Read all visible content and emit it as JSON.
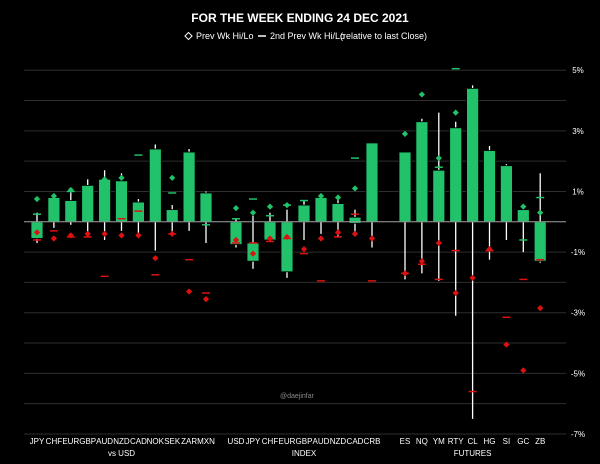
{
  "chart_data": {
    "type": "bar",
    "title": "FOR THE WEEK ENDING 24 DEC 2021",
    "legend": {
      "prev_week": "Prev Wk Hi/Lo",
      "prev_2_week": "2nd Prev Wk Hi/Lo",
      "note": "(relative to last Close)"
    },
    "y_ticks": [
      "5%",
      "3%",
      "1%",
      "-1%",
      "-3%",
      "-5%",
      "-7%"
    ],
    "ylim": [
      -7,
      5.6
    ],
    "grid": true,
    "watermark": "@daejinfar",
    "colors": {
      "up": "#21c26a",
      "down": "#dd1111",
      "wick": "#ffffff",
      "gridline": "#2e2e2e",
      "zero": "#999999"
    },
    "groups": [
      {
        "label": "vs USD",
        "items": [
          {
            "name": "JPY",
            "open": -0.55,
            "close": 0.0,
            "high": 0.3,
            "low": -0.7,
            "pwH": 0.75,
            "pwL": -0.35,
            "p2H": 0.25,
            "p2L": -0.6
          },
          {
            "name": "CHF",
            "open": 0.0,
            "close": 0.8,
            "high": 0.9,
            "low": -0.2,
            "pwH": 0.85,
            "pwL": -0.55,
            "p2H": 0.6,
            "p2L": -0.3
          },
          {
            "name": "EUR",
            "open": 0.0,
            "close": 0.7,
            "high": 1.0,
            "low": -0.1,
            "pwH": 1.05,
            "pwL": -0.45,
            "p2H": 1.0,
            "p2L": -0.5
          },
          {
            "name": "GBP",
            "open": 0.0,
            "close": 1.2,
            "high": 1.4,
            "low": -0.5,
            "pwH": 1.0,
            "pwL": -0.4,
            "p2H": 0.5,
            "p2L": -0.5
          },
          {
            "name": "AUD",
            "open": 0.0,
            "close": 1.4,
            "high": 1.7,
            "low": -0.6,
            "pwH": 1.4,
            "pwL": -0.4,
            "p2H": 0.9,
            "p2L": -1.8
          },
          {
            "name": "NZD",
            "open": 0.0,
            "close": 1.35,
            "high": 1.6,
            "low": -0.3,
            "pwH": 1.45,
            "pwL": -0.45,
            "p2H": 1.2,
            "p2L": 0.1
          },
          {
            "name": "CAD",
            "open": 0.0,
            "close": 0.65,
            "high": 0.75,
            "low": -0.5,
            "pwH": 0.4,
            "pwL": -0.45,
            "p2H": 2.2,
            "p2L": 0.35
          },
          {
            "name": "NOK",
            "open": 0.0,
            "close": 2.4,
            "high": 2.55,
            "low": -0.95,
            "pwH": 1.1,
            "pwL": -1.2,
            "p2H": 1.9,
            "p2L": -1.75
          },
          {
            "name": "SEK",
            "open": 0.0,
            "close": 0.4,
            "high": 0.55,
            "low": -0.4,
            "pwH": 1.45,
            "pwL": -0.4,
            "p2H": 0.95,
            "p2L": -0.4
          },
          {
            "name": "ZAR",
            "open": 0.0,
            "close": 2.3,
            "high": 2.4,
            "low": -0.3,
            "pwH": 0.6,
            "pwL": -2.3,
            "p2H": 1.4,
            "p2L": -1.25
          },
          {
            "name": "MXN",
            "open": 0.0,
            "close": 0.95,
            "high": 1.0,
            "low": -0.7,
            "pwH": 0.5,
            "pwL": -2.55,
            "p2H": -0.1,
            "p2L": -2.35
          }
        ]
      },
      {
        "label": "INDEX",
        "items": [
          {
            "name": "USD",
            "open": -0.75,
            "close": 0.0,
            "high": 0.1,
            "low": -0.85,
            "pwH": 0.45,
            "pwL": -0.6,
            "p2H": 0.1,
            "p2L": -0.7
          },
          {
            "name": "JPY",
            "open": -1.3,
            "close": -0.7,
            "high": 0.2,
            "low": -1.55,
            "pwH": 0.3,
            "pwL": -1.05,
            "p2H": 0.75,
            "p2L": -0.7
          },
          {
            "name": "CHF",
            "open": -0.6,
            "close": 0.0,
            "high": 0.3,
            "low": -0.65,
            "pwH": 0.5,
            "pwL": -0.55,
            "p2H": 0.2,
            "p2L": -0.65
          },
          {
            "name": "EUR",
            "open": -1.65,
            "close": 0.0,
            "high": 0.4,
            "low": -1.85,
            "pwH": 0.55,
            "pwL": -0.5,
            "p2H": 0.55,
            "p2L": -0.55
          },
          {
            "name": "GBP",
            "open": 0.0,
            "close": 0.55,
            "high": 0.7,
            "low": -0.6,
            "pwH": 0.35,
            "pwL": -0.9,
            "p2H": 0.7,
            "p2L": -1.05
          },
          {
            "name": "AUD",
            "open": 0.0,
            "close": 0.8,
            "high": 0.9,
            "low": -0.4,
            "pwH": 0.85,
            "pwL": -0.55,
            "p2H": 0.35,
            "p2L": -1.95
          },
          {
            "name": "NZD",
            "open": 0.0,
            "close": 0.6,
            "high": 0.75,
            "low": -0.5,
            "pwH": 0.8,
            "pwL": -0.35,
            "p2H": 0.1,
            "p2L": -0.5
          },
          {
            "name": "CAD",
            "open": -0.05,
            "close": 0.15,
            "high": 0.4,
            "low": -0.45,
            "pwH": 1.1,
            "pwL": -0.4,
            "p2H": 2.1,
            "p2L": 0.25
          },
          {
            "name": "CRB",
            "open": 0.0,
            "close": 2.6,
            "high": 2.6,
            "low": -0.85,
            "pwH": 0.95,
            "pwL": -0.55,
            "p2H": 0.9,
            "p2L": -1.95
          }
        ]
      },
      {
        "label": "FUTURES",
        "items": [
          {
            "name": "ES",
            "open": 0.0,
            "close": 2.3,
            "high": 2.3,
            "low": -1.9,
            "pwH": 2.9,
            "pwL": -1.7,
            "p2H": 2.2,
            "p2L": -1.7
          },
          {
            "name": "NQ",
            "open": 0.0,
            "close": 3.3,
            "high": 3.4,
            "low": -1.7,
            "pwH": 4.2,
            "pwL": -1.3,
            "p2H": 3.1,
            "p2L": -1.4
          },
          {
            "name": "YM",
            "open": 0.0,
            "close": 1.7,
            "high": 3.6,
            "low": -1.95,
            "pwH": 2.1,
            "pwL": -0.7,
            "p2H": 1.8,
            "p2L": -1.9
          },
          {
            "name": "RTY",
            "open": 0.0,
            "close": 3.1,
            "high": 3.3,
            "low": -3.1,
            "pwH": 3.6,
            "pwL": -2.35,
            "p2H": 5.05,
            "p2L": -0.95
          },
          {
            "name": "CL",
            "open": 0.0,
            "close": 4.4,
            "high": 4.5,
            "low": -6.5,
            "pwH": 3.25,
            "pwL": -1.85,
            "p2H": 3.75,
            "p2L": -5.6
          },
          {
            "name": "HG",
            "open": 0.0,
            "close": 2.35,
            "high": 2.5,
            "low": -1.25,
            "pwH": 0.9,
            "pwL": -0.9,
            "p2H": 2.2,
            "p2L": -0.95
          },
          {
            "name": "SI",
            "open": 0.0,
            "close": 1.85,
            "high": 1.9,
            "low": -0.6,
            "pwH": 0.6,
            "pwL": -4.05,
            "p2H": 1.75,
            "p2L": -3.15
          },
          {
            "name": "GC",
            "open": 0.0,
            "close": 0.4,
            "high": 0.4,
            "low": -1.0,
            "pwH": 0.5,
            "pwL": -4.9,
            "p2H": -0.6,
            "p2L": -1.9
          },
          {
            "name": "ZB",
            "open": -1.3,
            "close": 0.0,
            "high": 1.6,
            "low": -1.35,
            "pwH": 0.3,
            "pwL": -2.85,
            "p2H": 0.8,
            "p2L": -1.25
          }
        ]
      }
    ]
  }
}
